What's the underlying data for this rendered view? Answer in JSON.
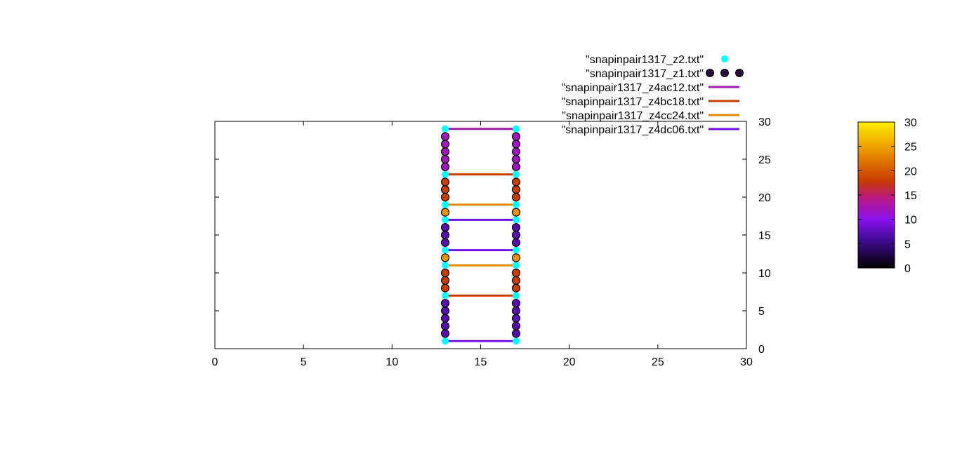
{
  "chart_data": {
    "type": "scatter",
    "title": "",
    "xlabel": "",
    "ylabel": "",
    "xlim": [
      0,
      30
    ],
    "ylim": [
      0,
      30
    ],
    "x_ticks": [
      0,
      5,
      10,
      15,
      20,
      25,
      30
    ],
    "y_ticks": [
      0,
      5,
      10,
      15,
      20,
      25,
      30
    ],
    "y_tick_side": "right",
    "grid": false,
    "legend_position": "top-right, above plot",
    "colorbar": {
      "range": [
        0,
        30
      ],
      "ticks": [
        0,
        5,
        10,
        15,
        20,
        25,
        30
      ],
      "palette": "black-purple-red-orange-yellow"
    },
    "series": [
      {
        "name": "\"snapinpair1317_z2.txt\"",
        "style": "points",
        "color": "#00ffff",
        "points": [
          [
            13,
            1
          ],
          [
            17,
            1
          ],
          [
            13,
            7
          ],
          [
            17,
            7
          ],
          [
            13,
            11
          ],
          [
            17,
            11
          ],
          [
            13,
            13
          ],
          [
            17,
            13
          ],
          [
            13,
            17
          ],
          [
            17,
            17
          ],
          [
            13,
            19
          ],
          [
            17,
            19
          ],
          [
            13,
            23
          ],
          [
            17,
            23
          ],
          [
            13,
            29
          ],
          [
            17,
            29
          ]
        ]
      },
      {
        "name": "\"snapinpair1317_z1.txt\"",
        "style": "points-colored",
        "legend_color": "#2a0a3a",
        "points": [
          {
            "x": 13,
            "y": 2,
            "c": 7
          },
          {
            "x": 17,
            "y": 2,
            "c": 7
          },
          {
            "x": 13,
            "y": 3,
            "c": 7
          },
          {
            "x": 17,
            "y": 3,
            "c": 7
          },
          {
            "x": 13,
            "y": 4,
            "c": 7
          },
          {
            "x": 17,
            "y": 4,
            "c": 7
          },
          {
            "x": 13,
            "y": 5,
            "c": 7
          },
          {
            "x": 17,
            "y": 5,
            "c": 7
          },
          {
            "x": 13,
            "y": 6,
            "c": 7
          },
          {
            "x": 17,
            "y": 6,
            "c": 7
          },
          {
            "x": 13,
            "y": 8,
            "c": 18
          },
          {
            "x": 17,
            "y": 8,
            "c": 18
          },
          {
            "x": 13,
            "y": 9,
            "c": 18
          },
          {
            "x": 17,
            "y": 9,
            "c": 18
          },
          {
            "x": 13,
            "y": 10,
            "c": 18
          },
          {
            "x": 17,
            "y": 10,
            "c": 18
          },
          {
            "x": 13,
            "y": 12,
            "c": 24
          },
          {
            "x": 17,
            "y": 12,
            "c": 24
          },
          {
            "x": 13,
            "y": 14,
            "c": 7
          },
          {
            "x": 17,
            "y": 14,
            "c": 7
          },
          {
            "x": 13,
            "y": 15,
            "c": 7
          },
          {
            "x": 17,
            "y": 15,
            "c": 7
          },
          {
            "x": 13,
            "y": 16,
            "c": 7
          },
          {
            "x": 17,
            "y": 16,
            "c": 7
          },
          {
            "x": 13,
            "y": 18,
            "c": 24
          },
          {
            "x": 17,
            "y": 18,
            "c": 24
          },
          {
            "x": 13,
            "y": 20,
            "c": 18
          },
          {
            "x": 17,
            "y": 20,
            "c": 18
          },
          {
            "x": 13,
            "y": 21,
            "c": 18
          },
          {
            "x": 17,
            "y": 21,
            "c": 18
          },
          {
            "x": 13,
            "y": 22,
            "c": 18
          },
          {
            "x": 17,
            "y": 22,
            "c": 18
          },
          {
            "x": 13,
            "y": 24,
            "c": 12
          },
          {
            "x": 17,
            "y": 24,
            "c": 12
          },
          {
            "x": 13,
            "y": 25,
            "c": 12
          },
          {
            "x": 17,
            "y": 25,
            "c": 12
          },
          {
            "x": 13,
            "y": 26,
            "c": 12
          },
          {
            "x": 17,
            "y": 26,
            "c": 12
          },
          {
            "x": 13,
            "y": 27,
            "c": 12
          },
          {
            "x": 17,
            "y": 27,
            "c": 12
          },
          {
            "x": 13,
            "y": 28,
            "c": 12
          },
          {
            "x": 17,
            "y": 28,
            "c": 12
          }
        ]
      },
      {
        "name": "\"snapinpair1317_z4ac12.txt\"",
        "style": "lines",
        "color": "#9b1fa8",
        "segments": [
          [
            [
              13,
              29
            ],
            [
              17,
              29
            ]
          ],
          [
            [
              13,
              24
            ],
            [
              13,
              29
            ]
          ],
          [
            [
              17,
              24
            ],
            [
              17,
              29
            ]
          ]
        ]
      },
      {
        "name": "\"snapinpair1317_z4bc18.txt\"",
        "style": "lines",
        "color": "#c83c00",
        "segments": [
          [
            [
              13,
              7
            ],
            [
              17,
              7
            ]
          ],
          [
            [
              13,
              23
            ],
            [
              17,
              23
            ]
          ],
          [
            [
              13,
              8
            ],
            [
              13,
              10
            ]
          ],
          [
            [
              17,
              8
            ],
            [
              17,
              10
            ]
          ],
          [
            [
              13,
              20
            ],
            [
              13,
              22
            ]
          ],
          [
            [
              17,
              20
            ],
            [
              17,
              22
            ]
          ]
        ]
      },
      {
        "name": "\"snapinpair1317_z4cc24.txt\"",
        "style": "lines",
        "color": "#e08a00",
        "segments": [
          [
            [
              13,
              11
            ],
            [
              17,
              11
            ]
          ],
          [
            [
              13,
              19
            ],
            [
              17,
              19
            ]
          ]
        ]
      },
      {
        "name": "\"snapinpair1317_z4dc06.txt\"",
        "style": "lines",
        "color": "#7010e8",
        "segments": [
          [
            [
              13,
              1
            ],
            [
              17,
              1
            ]
          ],
          [
            [
              13,
              13
            ],
            [
              17,
              13
            ]
          ],
          [
            [
              13,
              17
            ],
            [
              17,
              17
            ]
          ],
          [
            [
              13,
              1
            ],
            [
              13,
              6
            ]
          ],
          [
            [
              17,
              1
            ],
            [
              17,
              6
            ]
          ],
          [
            [
              13,
              13
            ],
            [
              13,
              17
            ]
          ],
          [
            [
              17,
              13
            ],
            [
              17,
              17
            ]
          ]
        ]
      }
    ]
  }
}
